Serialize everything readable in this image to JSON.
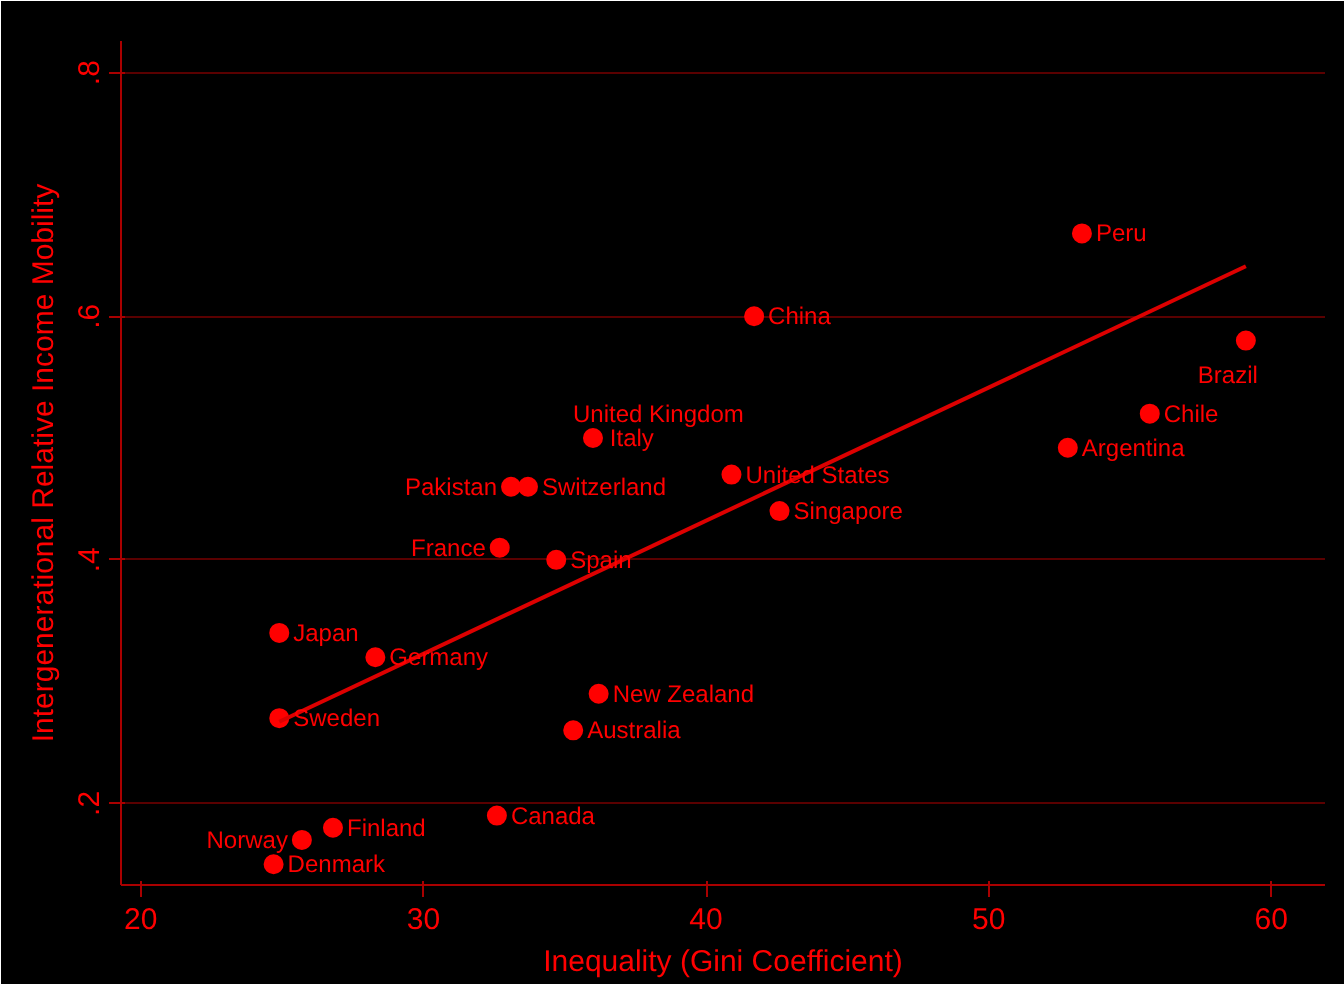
{
  "chart_data": {
    "type": "scatter",
    "xlabel": "Inequality (Gini Coefficient)",
    "ylabel": "Intergenerational Relative Income Mobility",
    "series": [
      {
        "color": "#ff0000",
        "marker": "circle",
        "x": [
          53.3,
          41.7,
          59.1,
          55.7,
          52.8,
          36.1,
          36.0,
          40.9,
          33.1,
          33.7,
          42.6,
          32.7,
          34.7,
          24.9,
          28.3,
          24.9,
          36.2,
          35.3,
          32.6,
          26.8,
          25.7,
          24.7
        ],
        "values": [
          0.668,
          0.6,
          0.58,
          0.52,
          0.492,
          null,
          0.5,
          0.47,
          0.46,
          0.46,
          0.44,
          0.41,
          0.4,
          0.34,
          0.32,
          0.27,
          0.29,
          0.26,
          0.19,
          0.18,
          0.17,
          0.15
        ]
      },
      {
        "type": "line",
        "color": "#dd0000",
        "x": [
          24.9,
          59.1
        ],
        "values": [
          0.267,
          0.641
        ]
      }
    ],
    "annotations": [
      {
        "text": "Peru",
        "x": 53.3,
        "y": 0.668
      },
      {
        "text": "China",
        "x": 41.7,
        "y": 0.6
      },
      {
        "text": "Brazil",
        "x": 59.1,
        "y": 0.58
      },
      {
        "text": "Chile",
        "x": 55.7,
        "y": 0.52
      },
      {
        "text": "Argentina",
        "x": 52.8,
        "y": 0.492
      },
      {
        "text": "Italy",
        "x": 36.1,
        "y": 0.5
      },
      {
        "text": "United Kingdom",
        "x": 36.0,
        "y": 0.5
      },
      {
        "text": "United States",
        "x": 40.9,
        "y": 0.47
      },
      {
        "text": "Pakistan",
        "x": 33.1,
        "y": 0.46
      },
      {
        "text": "Switzerland",
        "x": 33.7,
        "y": 0.46
      },
      {
        "text": "Singapore",
        "x": 42.6,
        "y": 0.44
      },
      {
        "text": "France",
        "x": 32.7,
        "y": 0.41
      },
      {
        "text": "Spain",
        "x": 34.7,
        "y": 0.4
      },
      {
        "text": "Japan",
        "x": 24.9,
        "y": 0.34
      },
      {
        "text": "Germany",
        "x": 28.3,
        "y": 0.32
      },
      {
        "text": "Sweden",
        "x": 24.9,
        "y": 0.27
      },
      {
        "text": "New Zealand",
        "x": 36.2,
        "y": 0.29
      },
      {
        "text": "Australia",
        "x": 35.3,
        "y": 0.26
      },
      {
        "text": "Canada",
        "x": 32.6,
        "y": 0.19
      },
      {
        "text": "Finland",
        "x": 26.8,
        "y": 0.18
      },
      {
        "text": "Norway",
        "x": 25.7,
        "y": 0.17
      },
      {
        "text": "Denmark",
        "x": 24.7,
        "y": 0.15
      }
    ],
    "xlim": [
      19.3,
      61.9
    ],
    "ylim": [
      0.133,
      0.826
    ],
    "xticks": [
      20,
      30,
      40,
      50,
      60
    ],
    "yticks": [
      {
        "value": 0.2,
        "label": ".2"
      },
      {
        "value": 0.4,
        "label": ".4"
      },
      {
        "value": 0.6,
        "label": ".6"
      },
      {
        "value": 0.8,
        "label": ".8"
      }
    ],
    "grid": "y",
    "line_style": "solid"
  }
}
